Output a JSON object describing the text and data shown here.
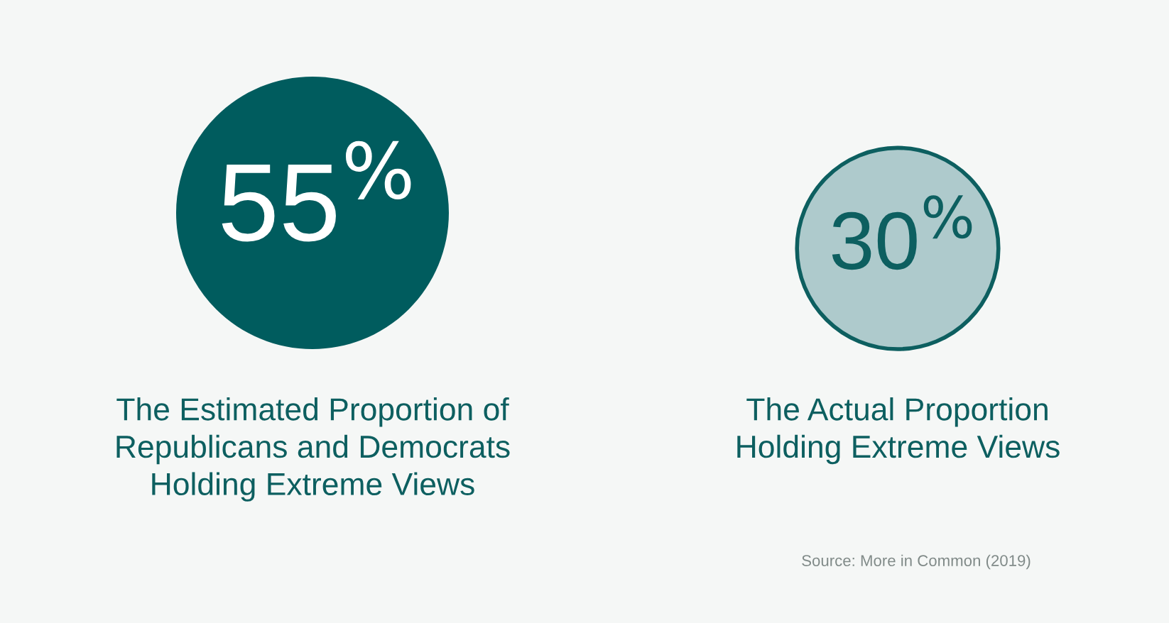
{
  "chart_data": {
    "type": "other",
    "categories": [
      "The Estimated Proportion of\nRepublicans and Democrats\nHolding Extreme Views",
      "The Actual Proportion\nHolding Extreme Views"
    ],
    "values": [
      55,
      30
    ],
    "value_labels": [
      "55$^{%}$",
      "30$^{%}$"
    ],
    "colors": [
      "#005c5e",
      "#aecacc"
    ],
    "annotations": [
      "Source: More in Common (2019)"
    ]
  }
}
